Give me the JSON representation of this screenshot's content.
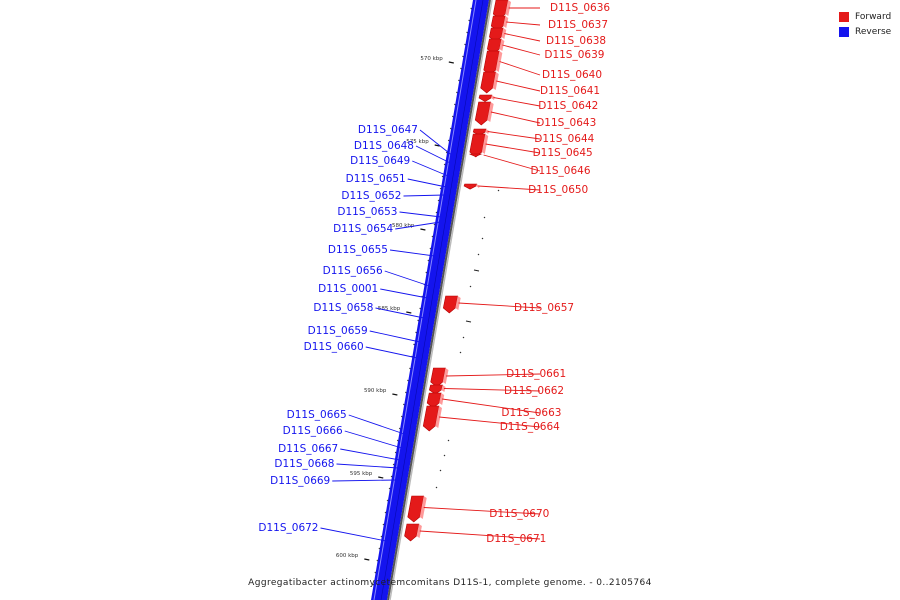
{
  "colors": {
    "forward": "#e41a1a",
    "reverse": "#1414ee"
  },
  "legend": [
    {
      "label": "Forward",
      "color": "#e41a1a"
    },
    {
      "label": "Reverse",
      "color": "#1414ee"
    }
  ],
  "caption": "Aggregatibacter actinomycetemcomitans D11S-1, complete genome. - 0..2105764",
  "scale_ticks": [
    "570 kbp",
    "575 kbp",
    "580 kbp",
    "585 kbp",
    "590 kbp",
    "595 kbp",
    "600 kbp"
  ],
  "forward_genes": [
    "D11S_0636",
    "D11S_0637",
    "D11S_0638",
    "D11S_0639",
    "D11S_0640",
    "D11S_0641",
    "D11S_0642",
    "D11S_0643",
    "D11S_0644",
    "D11S_0645",
    "D11S_0646",
    "D11S_0650",
    "D11S_0657",
    "D11S_0661",
    "D11S_0662",
    "D11S_0663",
    "D11S_0664",
    "D11S_0670",
    "D11S_0671"
  ],
  "reverse_genes": [
    "D11S_0647",
    "D11S_0648",
    "D11S_0649",
    "D11S_0651",
    "D11S_0652",
    "D11S_0653",
    "D11S_0654",
    "D11S_0655",
    "D11S_0656",
    "D11S_0001",
    "D11S_0658",
    "D11S_0659",
    "D11S_0660",
    "D11S_0665",
    "D11S_0666",
    "D11S_0667",
    "D11S_0668",
    "D11S_0669",
    "D11S_0672"
  ]
}
